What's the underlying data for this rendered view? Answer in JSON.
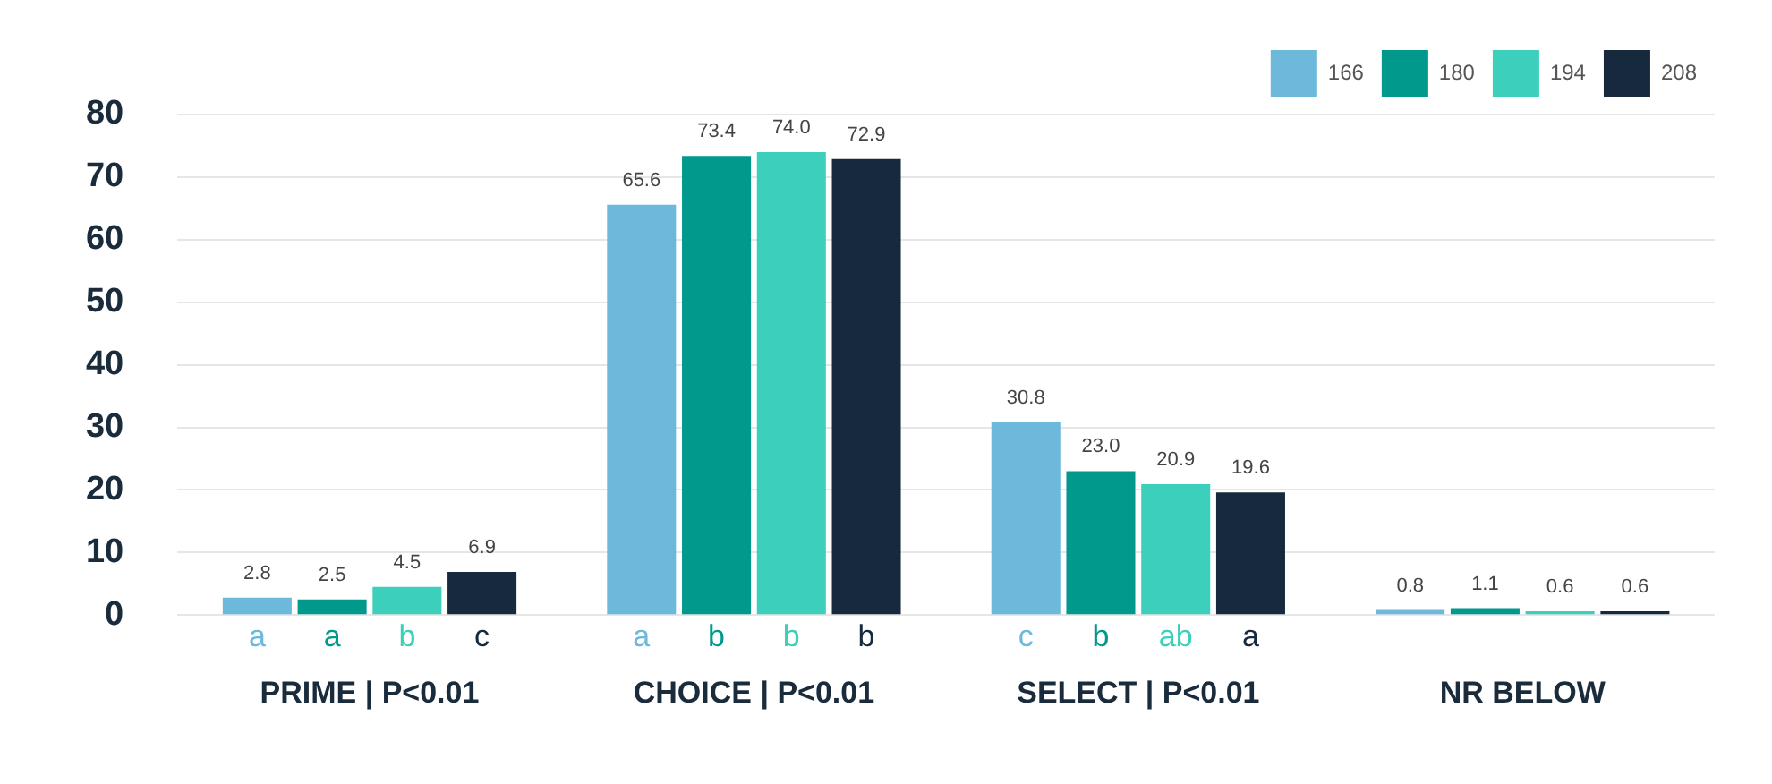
{
  "chart_data": {
    "type": "bar",
    "categories": [
      "PRIME | P<0.01",
      "CHOICE | P<0.01",
      "SELECT | P<0.01",
      "NR BELOW"
    ],
    "series": [
      {
        "name": "166",
        "color": "#6cb9dc",
        "values": [
          2.8,
          65.6,
          30.8,
          0.8
        ],
        "value_labels": [
          "2.8",
          "65.6",
          "30.8",
          "0.8"
        ]
      },
      {
        "name": "180",
        "color": "#00998c",
        "values": [
          2.5,
          73.4,
          23.0,
          1.1
        ],
        "value_labels": [
          "2.5",
          "73.4",
          "23.0",
          "1.1"
        ]
      },
      {
        "name": "194",
        "color": "#3ccfbb",
        "values": [
          4.5,
          74.0,
          20.9,
          0.6
        ],
        "value_labels": [
          "4.5",
          "74.0",
          "20.9",
          "0.6"
        ]
      },
      {
        "name": "208",
        "color": "#172a3d",
        "values": [
          6.9,
          72.9,
          19.6,
          0.6
        ],
        "value_labels": [
          "6.9",
          "72.9",
          "19.6",
          "0.6"
        ]
      }
    ],
    "annotations": [
      "a",
      "a",
      "b",
      "c",
      "a",
      "b",
      "b",
      "b",
      "c",
      "b",
      "ab",
      "a"
    ],
    "ylim": [
      0,
      80
    ],
    "yticks": [
      0,
      10,
      20,
      30,
      40,
      50,
      60,
      70,
      80
    ],
    "grid": "y",
    "legend": "top right"
  }
}
